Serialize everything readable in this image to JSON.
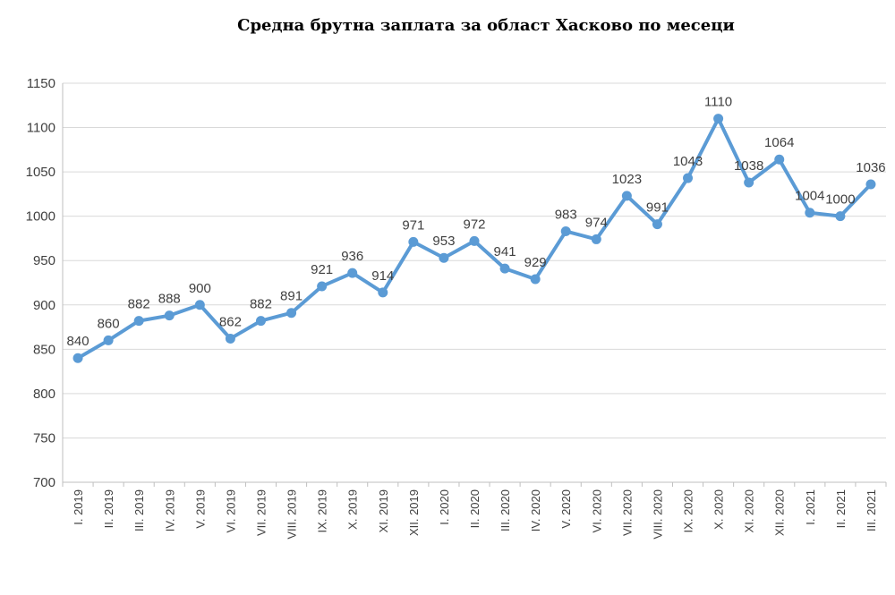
{
  "chart_data": {
    "type": "line",
    "title": "Средна брутна заплата за област Хасково по месеци",
    "xlabel": "",
    "ylabel": "",
    "ylim": [
      700,
      1150
    ],
    "yticks": [
      700,
      750,
      800,
      850,
      900,
      950,
      1000,
      1050,
      1100,
      1150
    ],
    "grid": true,
    "line_color": "#5b9bd5",
    "categories": [
      "I. 2019",
      "II. 2019",
      "III. 2019",
      "IV. 2019",
      "V. 2019",
      "VI. 2019",
      "VII. 2019",
      "VIII. 2019",
      "IX. 2019",
      "X. 2019",
      "XI. 2019",
      "XII. 2019",
      "I. 2020",
      "II. 2020",
      "III. 2020",
      "IV. 2020",
      "V. 2020",
      "VI. 2020",
      "VII. 2020",
      "VIII. 2020",
      "IX. 2020",
      "X. 2020",
      "XI. 2020",
      "XII. 2020",
      "I. 2021",
      "II. 2021",
      "III. 2021"
    ],
    "series": [
      {
        "values": [
          840,
          860,
          882,
          888,
          900,
          862,
          882,
          891,
          921,
          936,
          914,
          971,
          953,
          972,
          941,
          929,
          983,
          974,
          1023,
          991,
          1043,
          1110,
          1038,
          1064,
          1004,
          1000,
          1036
        ]
      }
    ]
  }
}
